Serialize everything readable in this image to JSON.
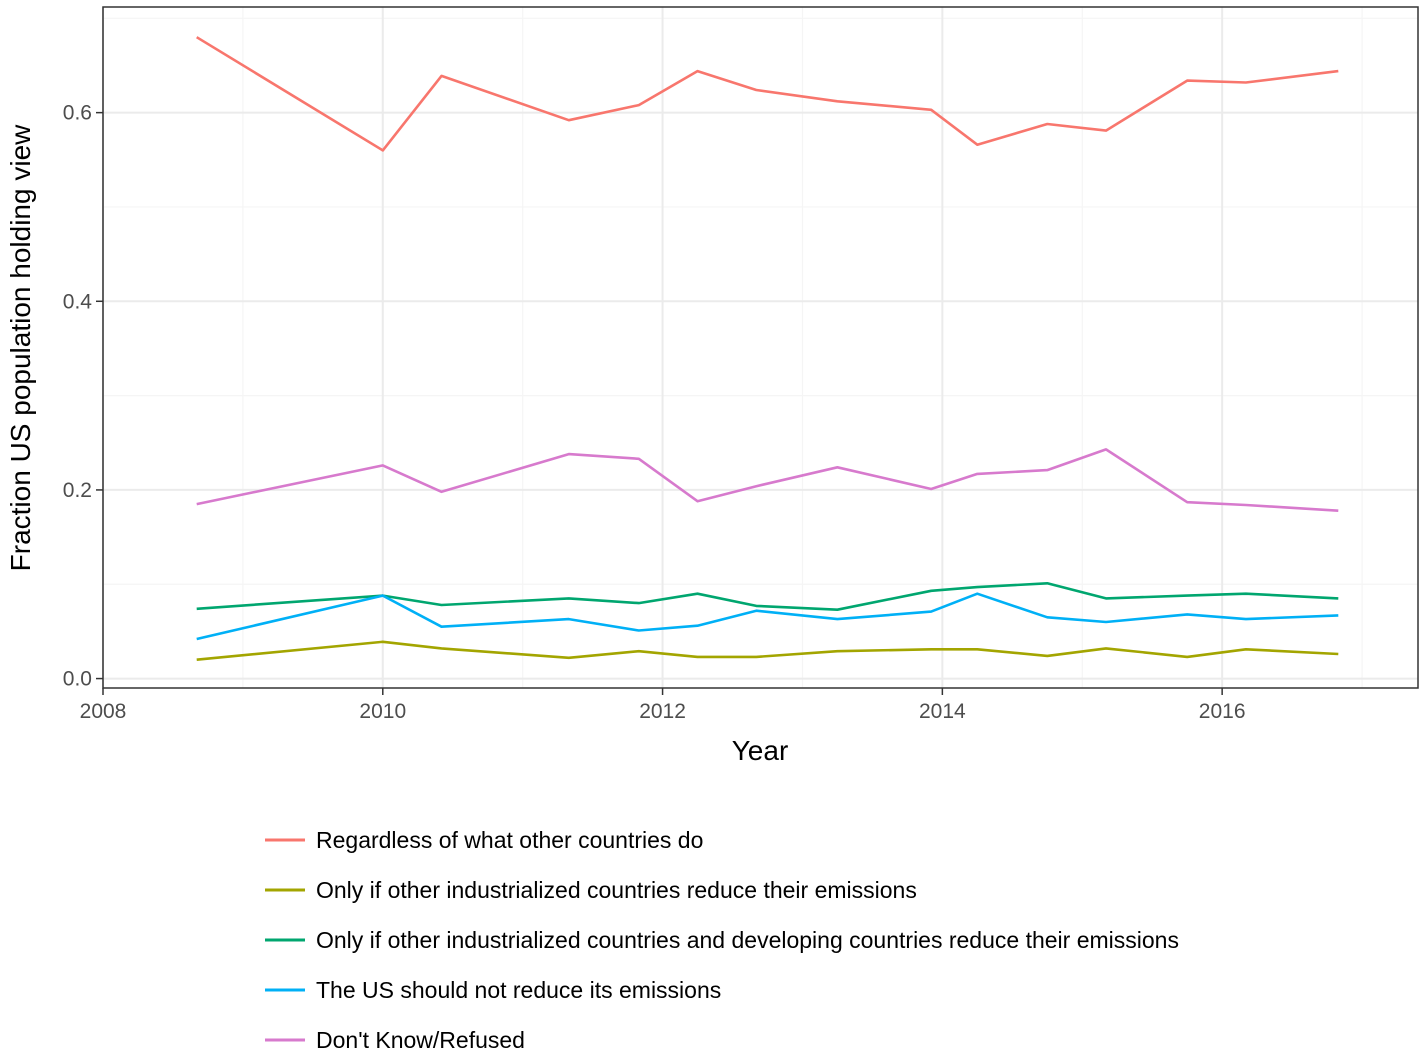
{
  "chart_data": {
    "type": "line",
    "title": "",
    "xlabel": "Year",
    "ylabel": "Fraction US population holding view",
    "xlim": [
      2008,
      2017.4
    ],
    "ylim": [
      -0.01,
      0.712
    ],
    "x_ticks": [
      2008,
      2010,
      2012,
      2014,
      2016
    ],
    "x_tick_labels": [
      "2008",
      "2010",
      "2012",
      "2014",
      "2016"
    ],
    "y_ticks": [
      0.0,
      0.2,
      0.4,
      0.6
    ],
    "y_tick_labels": [
      "0.0",
      "0.2",
      "0.4",
      "0.6"
    ],
    "y_minor_ticks": [
      0.1,
      0.3,
      0.5,
      0.7
    ],
    "grid": true,
    "legend_position": "bottom",
    "x": [
      2008.67,
      2010.0,
      2010.42,
      2011.33,
      2011.83,
      2012.25,
      2012.67,
      2013.25,
      2013.92,
      2014.25,
      2014.75,
      2015.17,
      2015.75,
      2016.17,
      2016.83
    ],
    "series": [
      {
        "name": "Regardless of what other countries do",
        "color": "#F8766D",
        "values": [
          0.68,
          0.56,
          0.639,
          0.592,
          0.608,
          0.644,
          0.624,
          0.612,
          0.603,
          0.566,
          0.588,
          0.581,
          0.634,
          0.632,
          0.644
        ]
      },
      {
        "name": "Only if other industrialized countries reduce their emissions",
        "color": "#A3A500",
        "values": [
          0.02,
          0.039,
          0.032,
          0.022,
          0.029,
          0.023,
          0.023,
          0.029,
          0.031,
          0.031,
          0.024,
          0.032,
          0.023,
          0.031,
          0.026
        ]
      },
      {
        "name": "Only if other industrialized countries and developing countries reduce their emissions",
        "color": "#00A66F",
        "values": [
          0.074,
          0.088,
          0.078,
          0.085,
          0.08,
          0.09,
          0.077,
          0.073,
          0.093,
          0.097,
          0.101,
          0.085,
          0.088,
          0.09,
          0.085
        ]
      },
      {
        "name": "The US should not reduce its emissions",
        "color": "#00B0F6",
        "values": [
          0.042,
          0.088,
          0.055,
          0.063,
          0.051,
          0.056,
          0.072,
          0.063,
          0.071,
          0.09,
          0.065,
          0.06,
          0.068,
          0.063,
          0.067
        ]
      },
      {
        "name": "Don't Know/Refused",
        "color": "#E76BF3",
        "values": [
          0.185,
          0.226,
          0.198,
          0.238,
          0.233,
          0.188,
          0.204,
          0.224,
          0.201,
          0.217,
          0.221,
          0.243,
          0.187,
          0.184,
          0.178
        ]
      }
    ]
  },
  "colors": {
    "panel_border": "#333333",
    "grid_major": "#ebebeb",
    "grid_minor": "#f5f5f5",
    "tick_text": "#4d4d4d",
    "dk_refused_line": "#D77ACD"
  }
}
